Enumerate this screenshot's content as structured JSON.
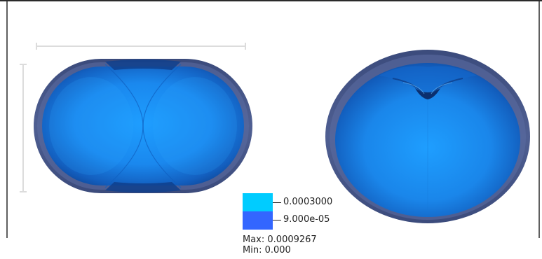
{
  "legend": {
    "swatches": [
      {
        "label": "0.0003000",
        "color": "#00ccff"
      },
      {
        "label": "9.000e-05",
        "color": "#3366ff"
      }
    ]
  },
  "stats": {
    "max_label": "Max:",
    "max_value": "0.0009267",
    "min_label": "Min:",
    "min_value": "0.000"
  },
  "colors": {
    "shell_outer": "#4a5a8a",
    "body_light": "#1a9cff",
    "body_mid": "#1577d6",
    "body_dark": "#0f4fa8",
    "ruler": "#dcdcdc"
  }
}
